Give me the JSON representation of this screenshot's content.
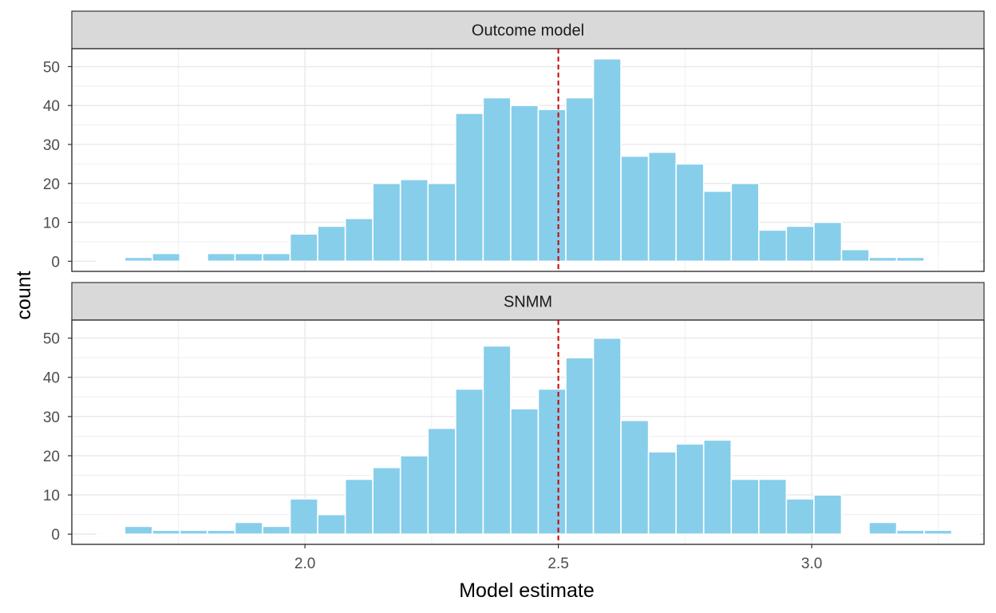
{
  "colors": {
    "bar_fill": "#87ceeb",
    "bar_outline": "#ffffff",
    "reference_line": "#cc0000",
    "strip_background": "#d9d9d9",
    "grid": "#ebebeb",
    "panel_border": "#333333"
  },
  "chart_data": {
    "type": "bar",
    "subtype": "faceted histogram",
    "xlabel": "Model estimate",
    "ylabel": "count",
    "xlim": [
      1.54,
      3.34
    ],
    "ylim": [
      -2.6,
      54.6
    ],
    "x_ticks": [
      {
        "value": 2.0,
        "label": "2.0"
      },
      {
        "value": 2.5,
        "label": "2.5"
      },
      {
        "value": 3.0,
        "label": "3.0"
      }
    ],
    "y_ticks": [
      {
        "value": 0,
        "label": "0"
      },
      {
        "value": 10,
        "label": "10"
      },
      {
        "value": 20,
        "label": "20"
      },
      {
        "value": 30,
        "label": "30"
      },
      {
        "value": 40,
        "label": "40"
      },
      {
        "value": 50,
        "label": "50"
      }
    ],
    "grid": true,
    "reference_line": {
      "x": 2.5,
      "style": "dashed"
    },
    "bin_width": 0.0544,
    "bin_start": 1.59,
    "facets": [
      {
        "name": "Outcome model",
        "counts": [
          0,
          1,
          2,
          0,
          2,
          2,
          2,
          7,
          9,
          11,
          20,
          21,
          20,
          38,
          42,
          40,
          39,
          42,
          52,
          27,
          28,
          25,
          18,
          20,
          8,
          9,
          10,
          3,
          1,
          1,
          0,
          0
        ]
      },
      {
        "name": "SNMM",
        "counts": [
          0,
          2,
          1,
          1,
          1,
          3,
          2,
          9,
          5,
          14,
          17,
          20,
          27,
          37,
          48,
          32,
          37,
          45,
          50,
          29,
          21,
          23,
          24,
          14,
          14,
          9,
          10,
          0,
          3,
          1,
          1,
          0
        ]
      }
    ]
  }
}
